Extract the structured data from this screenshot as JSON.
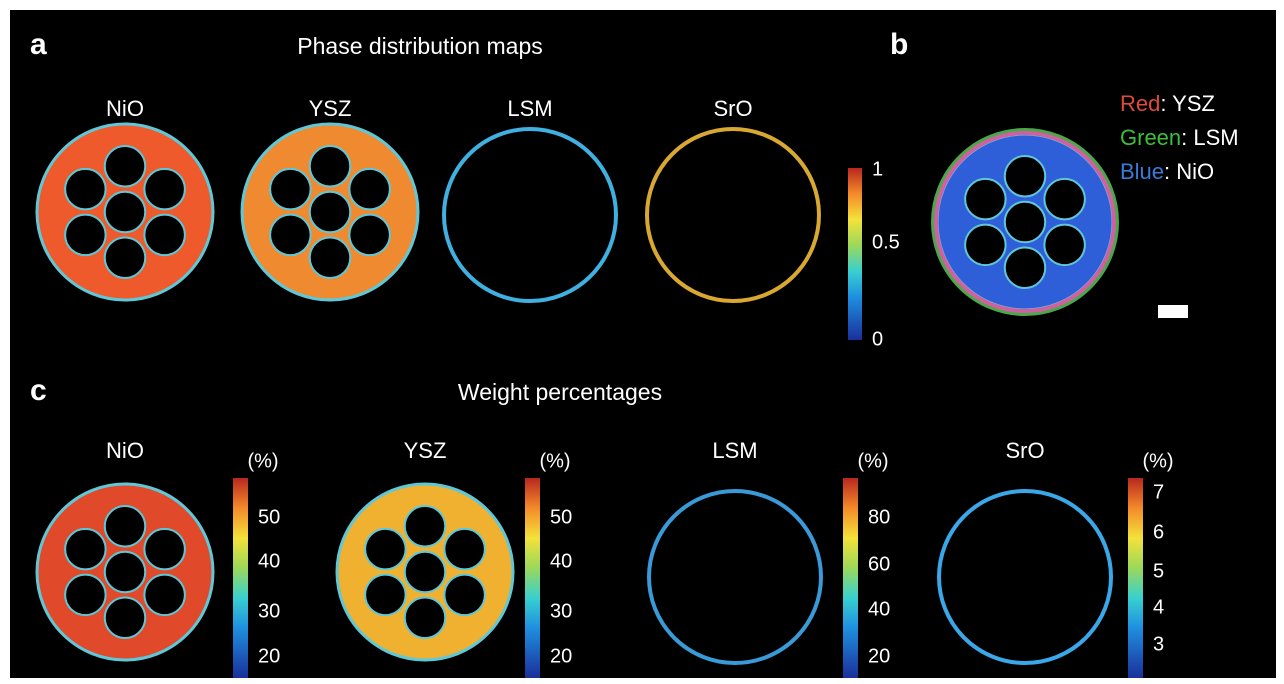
{
  "panel_a": {
    "label": "a",
    "title": "Phase distribution maps",
    "maps": [
      "NiO",
      "YSZ",
      "LSM",
      "SrO"
    ],
    "colorbar_ticks": [
      "1",
      "0.5",
      "0"
    ]
  },
  "panel_b": {
    "label": "b",
    "legend": [
      {
        "channel": "Red",
        "text": ": YSZ"
      },
      {
        "channel": "Green",
        "text": ": LSM"
      },
      {
        "channel": "Blue",
        "text": ": NiO"
      }
    ]
  },
  "panel_c": {
    "label": "c",
    "title": "Weight percentages",
    "unit": "(%)",
    "maps": [
      {
        "name": "NiO",
        "ticks": [
          "50",
          "40",
          "30",
          "20"
        ]
      },
      {
        "name": "YSZ",
        "ticks": [
          "50",
          "40",
          "30",
          "20"
        ]
      },
      {
        "name": "LSM",
        "ticks": [
          "80",
          "60",
          "40",
          "20"
        ]
      },
      {
        "name": "SrO",
        "ticks": [
          "7",
          "6",
          "5",
          "4",
          "3"
        ]
      }
    ]
  }
}
